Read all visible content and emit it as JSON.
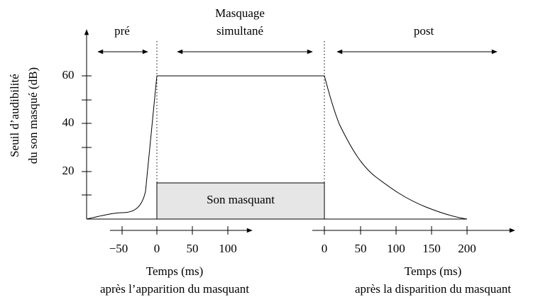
{
  "y_axis": {
    "label_line1": "Seuil d’audibilité",
    "label_line2": "du son masqué (dB)",
    "ticks": [
      "20",
      "40",
      "60"
    ]
  },
  "regions": {
    "pre": "pré",
    "simultaneous_line1": "Masquage",
    "simultaneous_line2": "simultané",
    "post": "post"
  },
  "masker": "Son masquant",
  "left_axis": {
    "ticks": [
      "−50",
      "0",
      "50",
      "100"
    ],
    "title": "Temps (ms)",
    "subtitle": "après l’apparition du masquant"
  },
  "right_axis": {
    "ticks": [
      "0",
      "50",
      "100",
      "150",
      "200"
    ],
    "title": "Temps (ms)",
    "subtitle": "après la disparition du masquant"
  }
}
